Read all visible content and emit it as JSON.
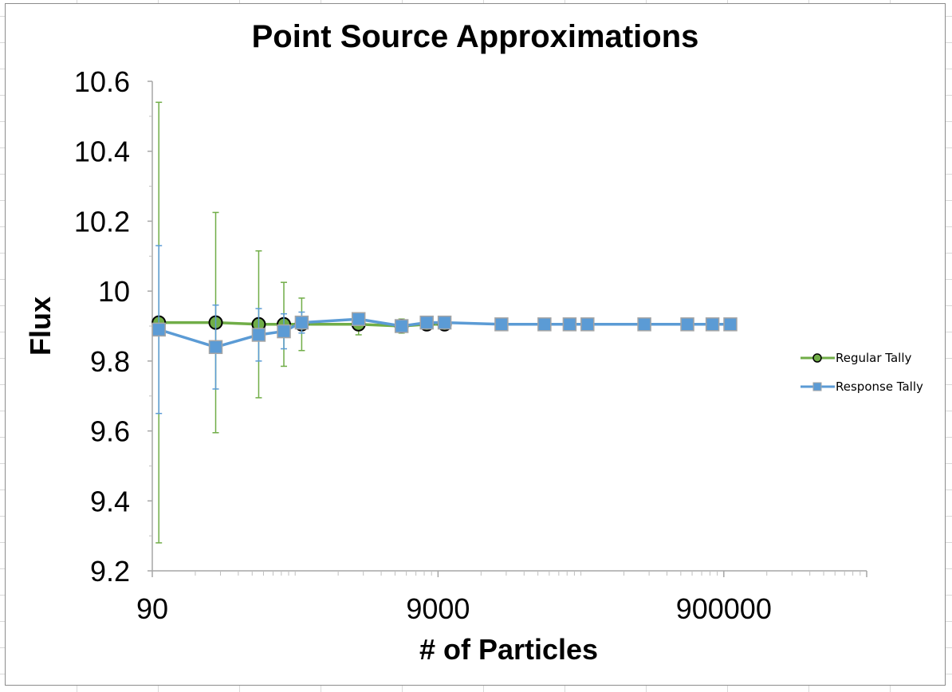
{
  "chart_data": {
    "type": "scatter",
    "title": "Point Source Approximations",
    "xlabel": "# of Particles",
    "ylabel": "Flux",
    "xscale": "log",
    "xlim": [
      90,
      9000000
    ],
    "ylim": [
      9.2,
      10.6
    ],
    "x_ticks": [
      90,
      9000,
      900000
    ],
    "x_tick_labels": [
      "90",
      "9000",
      "900000"
    ],
    "y_ticks": [
      9.2,
      9.4,
      9.6,
      9.8,
      10.0,
      10.2,
      10.4,
      10.6
    ],
    "y_tick_labels": [
      "9.2",
      "9.4",
      "9.6",
      "9.8",
      "10",
      "10.2",
      "10.4",
      "10.6"
    ],
    "grid": false,
    "legend_position": "right",
    "series": [
      {
        "name": "Regular Tally",
        "color": "#70ad47",
        "marker": "circle",
        "marker_fill": "#70ad47",
        "marker_edge": "#000000",
        "x": [
          100,
          250,
          500,
          750,
          1000,
          2500,
          5000,
          7500,
          10000
        ],
        "y": [
          9.91,
          9.91,
          9.905,
          9.905,
          9.905,
          9.905,
          9.9,
          9.905,
          9.905
        ],
        "error": [
          0.63,
          0.315,
          0.21,
          0.12,
          0.075,
          0.03,
          0.02,
          0.015,
          0.01
        ]
      },
      {
        "name": "Response Tally",
        "color": "#5b9bd5",
        "marker": "square",
        "marker_fill": "#5b9bd5",
        "marker_edge": "#a5a5a5",
        "x": [
          100,
          250,
          500,
          750,
          1000,
          2500,
          5000,
          7500,
          10000,
          25000,
          50000,
          75000,
          100000,
          250000,
          500000,
          750000,
          1000000
        ],
        "y": [
          9.89,
          9.84,
          9.875,
          9.885,
          9.91,
          9.92,
          9.9,
          9.91,
          9.91,
          9.905,
          9.905,
          9.905,
          9.905,
          9.905,
          9.905,
          9.905,
          9.905
        ],
        "error": [
          0.24,
          0.12,
          0.075,
          0.05,
          0.03,
          0.015,
          0.01,
          0.01,
          0.01,
          0.005,
          0.005,
          0.005,
          0.005,
          0.004,
          0.003,
          0.003,
          0.002
        ]
      }
    ]
  }
}
